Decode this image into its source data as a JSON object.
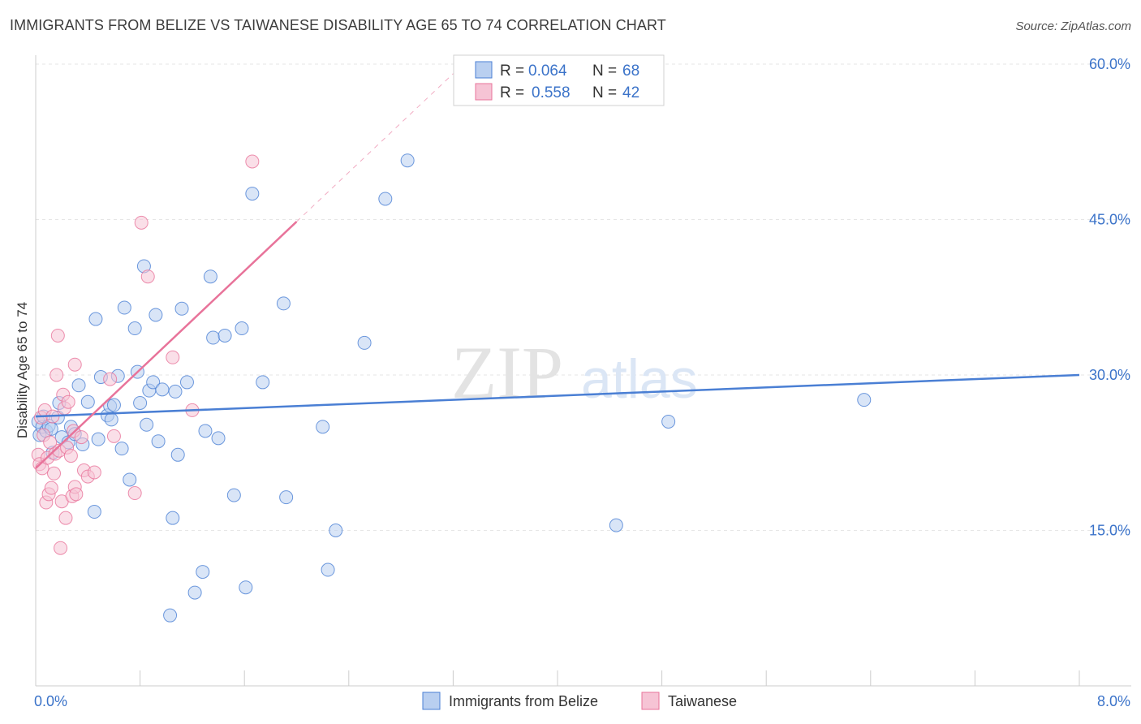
{
  "chart_data": {
    "type": "scatter",
    "title": "IMMIGRANTS FROM BELIZE VS TAIWANESE DISABILITY AGE 65 TO 74 CORRELATION CHART",
    "source": "Source: ZipAtlas.com",
    "xlabel": "",
    "ylabel": "Disability Age 65 to 74",
    "xlim": [
      0,
      8
    ],
    "ylim": [
      0,
      60
    ],
    "x_ticks": [
      {
        "value": 0,
        "label": "0.0%"
      },
      {
        "value": 8,
        "label": "8.0%"
      }
    ],
    "y_ticks": [
      {
        "value": 15,
        "label": "15.0%"
      },
      {
        "value": 30,
        "label": "30.0%"
      },
      {
        "value": 45,
        "label": "45.0%"
      },
      {
        "value": 60,
        "label": "60.0%"
      }
    ],
    "grid": true,
    "watermark": {
      "part1": "ZIP",
      "part2": "atlas"
    },
    "legend": [
      {
        "series": "Immigrants from Belize",
        "r_label": "R =",
        "r_value": "0.064",
        "n_label": "N =",
        "n_value": "68"
      },
      {
        "series": "Taiwanese",
        "r_label": "R =",
        "r_value": "0.558",
        "n_label": "N =",
        "n_value": "42"
      }
    ],
    "series": [
      {
        "name": "Immigrants from Belize",
        "color": "#4a7fd4",
        "fill": "#b9cff0",
        "trend": {
          "x0": 0.0,
          "y0": 26.0,
          "x1": 8.0,
          "y1": 30.0,
          "solid_to": 8.0,
          "dashed_to": 8.0
        },
        "points": [
          [
            0.02,
            25.5
          ],
          [
            0.03,
            24.2
          ],
          [
            0.05,
            25.0
          ],
          [
            0.06,
            26.0
          ],
          [
            0.08,
            24.6
          ],
          [
            0.1,
            25.1
          ],
          [
            0.12,
            24.8
          ],
          [
            0.13,
            22.5
          ],
          [
            0.17,
            25.9
          ],
          [
            0.18,
            27.3
          ],
          [
            0.2,
            24.0
          ],
          [
            0.25,
            23.5
          ],
          [
            0.27,
            25.0
          ],
          [
            0.3,
            24.3
          ],
          [
            0.33,
            29.0
          ],
          [
            0.36,
            23.3
          ],
          [
            0.4,
            27.4
          ],
          [
            0.45,
            16.8
          ],
          [
            0.46,
            35.4
          ],
          [
            0.48,
            23.8
          ],
          [
            0.5,
            29.8
          ],
          [
            0.55,
            26.1
          ],
          [
            0.57,
            27.0
          ],
          [
            0.58,
            25.7
          ],
          [
            0.6,
            27.1
          ],
          [
            0.63,
            29.9
          ],
          [
            0.66,
            22.9
          ],
          [
            0.68,
            36.5
          ],
          [
            0.72,
            19.9
          ],
          [
            0.76,
            34.5
          ],
          [
            0.78,
            30.3
          ],
          [
            0.8,
            27.3
          ],
          [
            0.83,
            40.5
          ],
          [
            0.85,
            25.2
          ],
          [
            0.87,
            28.5
          ],
          [
            0.9,
            29.3
          ],
          [
            0.92,
            35.8
          ],
          [
            0.94,
            23.6
          ],
          [
            0.97,
            28.6
          ],
          [
            1.03,
            6.8
          ],
          [
            1.05,
            16.2
          ],
          [
            1.07,
            28.4
          ],
          [
            1.09,
            22.3
          ],
          [
            1.12,
            36.4
          ],
          [
            1.16,
            29.3
          ],
          [
            1.22,
            9.0
          ],
          [
            1.28,
            11.0
          ],
          [
            1.3,
            24.6
          ],
          [
            1.34,
            39.5
          ],
          [
            1.36,
            33.6
          ],
          [
            1.4,
            23.9
          ],
          [
            1.45,
            33.8
          ],
          [
            1.52,
            18.4
          ],
          [
            1.58,
            34.5
          ],
          [
            1.61,
            9.5
          ],
          [
            1.66,
            47.5
          ],
          [
            1.74,
            29.3
          ],
          [
            1.9,
            36.9
          ],
          [
            1.92,
            18.2
          ],
          [
            2.2,
            25.0
          ],
          [
            2.24,
            11.2
          ],
          [
            2.3,
            15.0
          ],
          [
            2.52,
            33.1
          ],
          [
            2.68,
            47.0
          ],
          [
            2.85,
            50.7
          ],
          [
            4.45,
            15.5
          ],
          [
            4.85,
            25.5
          ],
          [
            6.35,
            27.6
          ]
        ]
      },
      {
        "name": "Taiwanese",
        "color": "#e8739a",
        "fill": "#f6c4d5",
        "trend": {
          "x0": 0.0,
          "y0": 21.0,
          "x1": 2.0,
          "y1": 44.8,
          "solid_to": 2.0,
          "dashed_to": 3.2
        },
        "points": [
          [
            0.02,
            22.3
          ],
          [
            0.03,
            21.4
          ],
          [
            0.04,
            25.9
          ],
          [
            0.05,
            21.0
          ],
          [
            0.06,
            24.2
          ],
          [
            0.07,
            26.6
          ],
          [
            0.08,
            17.7
          ],
          [
            0.09,
            22.0
          ],
          [
            0.1,
            18.5
          ],
          [
            0.11,
            23.5
          ],
          [
            0.12,
            19.1
          ],
          [
            0.13,
            26.0
          ],
          [
            0.14,
            20.5
          ],
          [
            0.15,
            22.4
          ],
          [
            0.16,
            30.0
          ],
          [
            0.17,
            33.8
          ],
          [
            0.18,
            22.7
          ],
          [
            0.19,
            13.3
          ],
          [
            0.2,
            17.8
          ],
          [
            0.21,
            28.1
          ],
          [
            0.22,
            26.8
          ],
          [
            0.23,
            16.2
          ],
          [
            0.24,
            23.0
          ],
          [
            0.25,
            27.4
          ],
          [
            0.27,
            22.2
          ],
          [
            0.28,
            18.3
          ],
          [
            0.29,
            24.6
          ],
          [
            0.3,
            19.2
          ],
          [
            0.31,
            18.5
          ],
          [
            0.3,
            31.0
          ],
          [
            0.35,
            24.0
          ],
          [
            0.37,
            20.8
          ],
          [
            0.4,
            20.2
          ],
          [
            0.45,
            20.6
          ],
          [
            0.57,
            29.6
          ],
          [
            0.6,
            24.1
          ],
          [
            0.76,
            18.6
          ],
          [
            0.81,
            44.7
          ],
          [
            0.86,
            39.5
          ],
          [
            1.05,
            31.7
          ],
          [
            1.2,
            26.6
          ],
          [
            1.66,
            50.6
          ]
        ]
      }
    ]
  }
}
